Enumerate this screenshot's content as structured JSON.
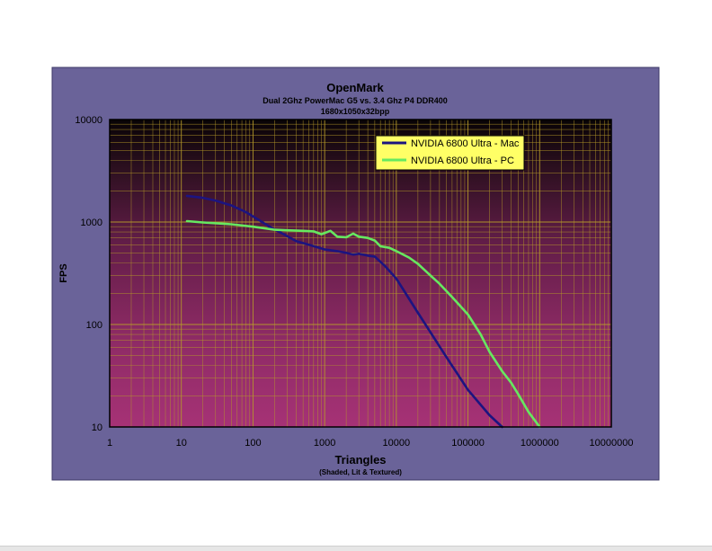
{
  "chart_data": {
    "type": "line",
    "title": "OpenMark",
    "subtitle": "Dual 2Ghz PowerMac G5 vs. 3.4 Ghz P4 DDR400",
    "subtitle2": "1680x1050x32bpp",
    "xlabel": "Triangles",
    "xlabel_sub": "(Shaded, Lit & Textured)",
    "ylabel": "FPS",
    "xscale": "log",
    "yscale": "log",
    "xlim": [
      1,
      10000000
    ],
    "ylim": [
      10,
      10000
    ],
    "grid": true,
    "legend_position": "top-right",
    "x_tick_labels": [
      "1",
      "10",
      "100",
      "1000",
      "10000",
      "100000",
      "1000000",
      "10000000"
    ],
    "y_tick_labels": [
      "10",
      "100",
      "1000",
      "10000"
    ],
    "series": [
      {
        "name": "NVIDIA 6800 Ultra - Mac",
        "color": "#1c1480",
        "x": [
          12,
          20,
          30,
          50,
          80,
          120,
          180,
          250,
          400,
          600,
          1000,
          1500,
          2000,
          2500,
          3000,
          4000,
          5000,
          7000,
          10000,
          20000,
          50000,
          100000,
          200000,
          300000
        ],
        "y": [
          1800,
          1720,
          1620,
          1450,
          1250,
          1050,
          880,
          780,
          650,
          600,
          540,
          520,
          500,
          480,
          490,
          470,
          460,
          370,
          280,
          130,
          48,
          23,
          13,
          10
        ]
      },
      {
        "name": "NVIDIA 6800 Ultra - PC",
        "color": "#66e860",
        "x": [
          12,
          20,
          50,
          100,
          200,
          300,
          500,
          700,
          900,
          1200,
          1500,
          2000,
          2500,
          3000,
          4000,
          5000,
          6000,
          8000,
          10000,
          15000,
          20000,
          30000,
          40000,
          60000,
          100000,
          150000,
          200000,
          300000,
          400000,
          500000,
          700000,
          1000000
        ],
        "y": [
          1020,
          990,
          950,
          900,
          840,
          830,
          820,
          810,
          760,
          820,
          720,
          710,
          770,
          720,
          700,
          660,
          580,
          560,
          520,
          450,
          390,
          300,
          250,
          185,
          125,
          80,
          54,
          35,
          27,
          21,
          14,
          10
        ]
      }
    ]
  }
}
